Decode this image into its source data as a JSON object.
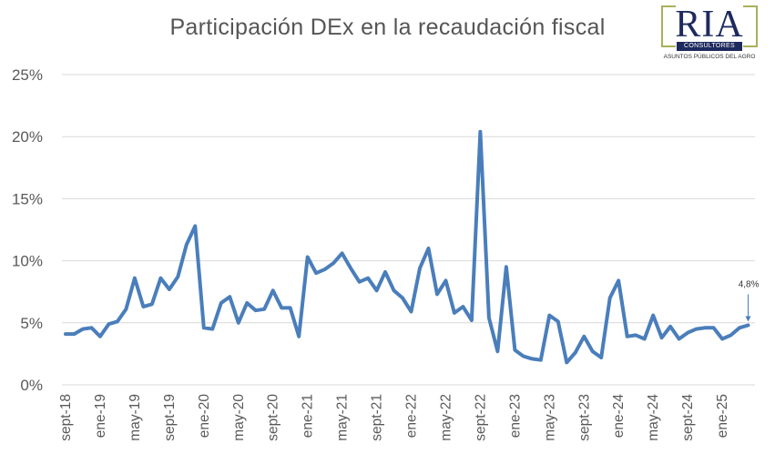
{
  "chart_data": {
    "type": "line",
    "title": "Participación DEx en la recaudación fiscal",
    "xlabel": "",
    "ylabel": "",
    "ylim": [
      0,
      25
    ],
    "yticks": [
      "0%",
      "5%",
      "10%",
      "15%",
      "20%",
      "25%"
    ],
    "ytick_values": [
      0,
      5,
      10,
      15,
      20,
      25
    ],
    "xtick_labels": [
      "sept-18",
      "ene-19",
      "may-19",
      "sept-19",
      "ene-20",
      "may-20",
      "sept-20",
      "ene-21",
      "may-21",
      "sept-21",
      "ene-22",
      "may-22",
      "sept-22",
      "ene-23",
      "may-23",
      "sept-23",
      "ene-24",
      "may-24",
      "sept-24",
      "ene-25"
    ],
    "grid": true,
    "legend": "none",
    "color": "#4a7ebb",
    "x_start": "sept-18",
    "x_frequency": "monthly",
    "values": [
      4.1,
      4.1,
      4.5,
      4.6,
      3.9,
      4.9,
      5.1,
      6.1,
      8.6,
      6.3,
      6.5,
      8.6,
      7.7,
      8.7,
      11.3,
      12.8,
      4.6,
      4.5,
      6.6,
      7.1,
      5.0,
      6.6,
      6.0,
      6.1,
      7.6,
      6.2,
      6.2,
      3.9,
      10.3,
      9.0,
      9.3,
      9.8,
      10.6,
      9.4,
      8.3,
      8.6,
      7.6,
      9.1,
      7.6,
      7.0,
      5.9,
      9.4,
      11.0,
      7.3,
      8.4,
      5.8,
      6.3,
      5.2,
      20.4,
      5.4,
      2.7,
      9.5,
      2.8,
      2.3,
      2.1,
      2.0,
      5.6,
      5.1,
      1.8,
      2.6,
      3.9,
      2.7,
      2.2,
      7.0,
      8.4,
      3.9,
      4.0,
      3.7,
      5.6,
      3.8,
      4.7,
      3.7,
      4.2,
      4.5,
      4.6,
      4.6,
      3.7,
      4.0,
      4.6,
      4.8
    ],
    "annotation": "4,8%"
  },
  "logo": {
    "letters": "RIA",
    "band_text": "CONSULTORES",
    "tagline": "ASUNTOS PÚBLICOS DEL AGRO",
    "colors": {
      "navy": "#1d2a5e",
      "olive": "#a9b15a"
    }
  }
}
